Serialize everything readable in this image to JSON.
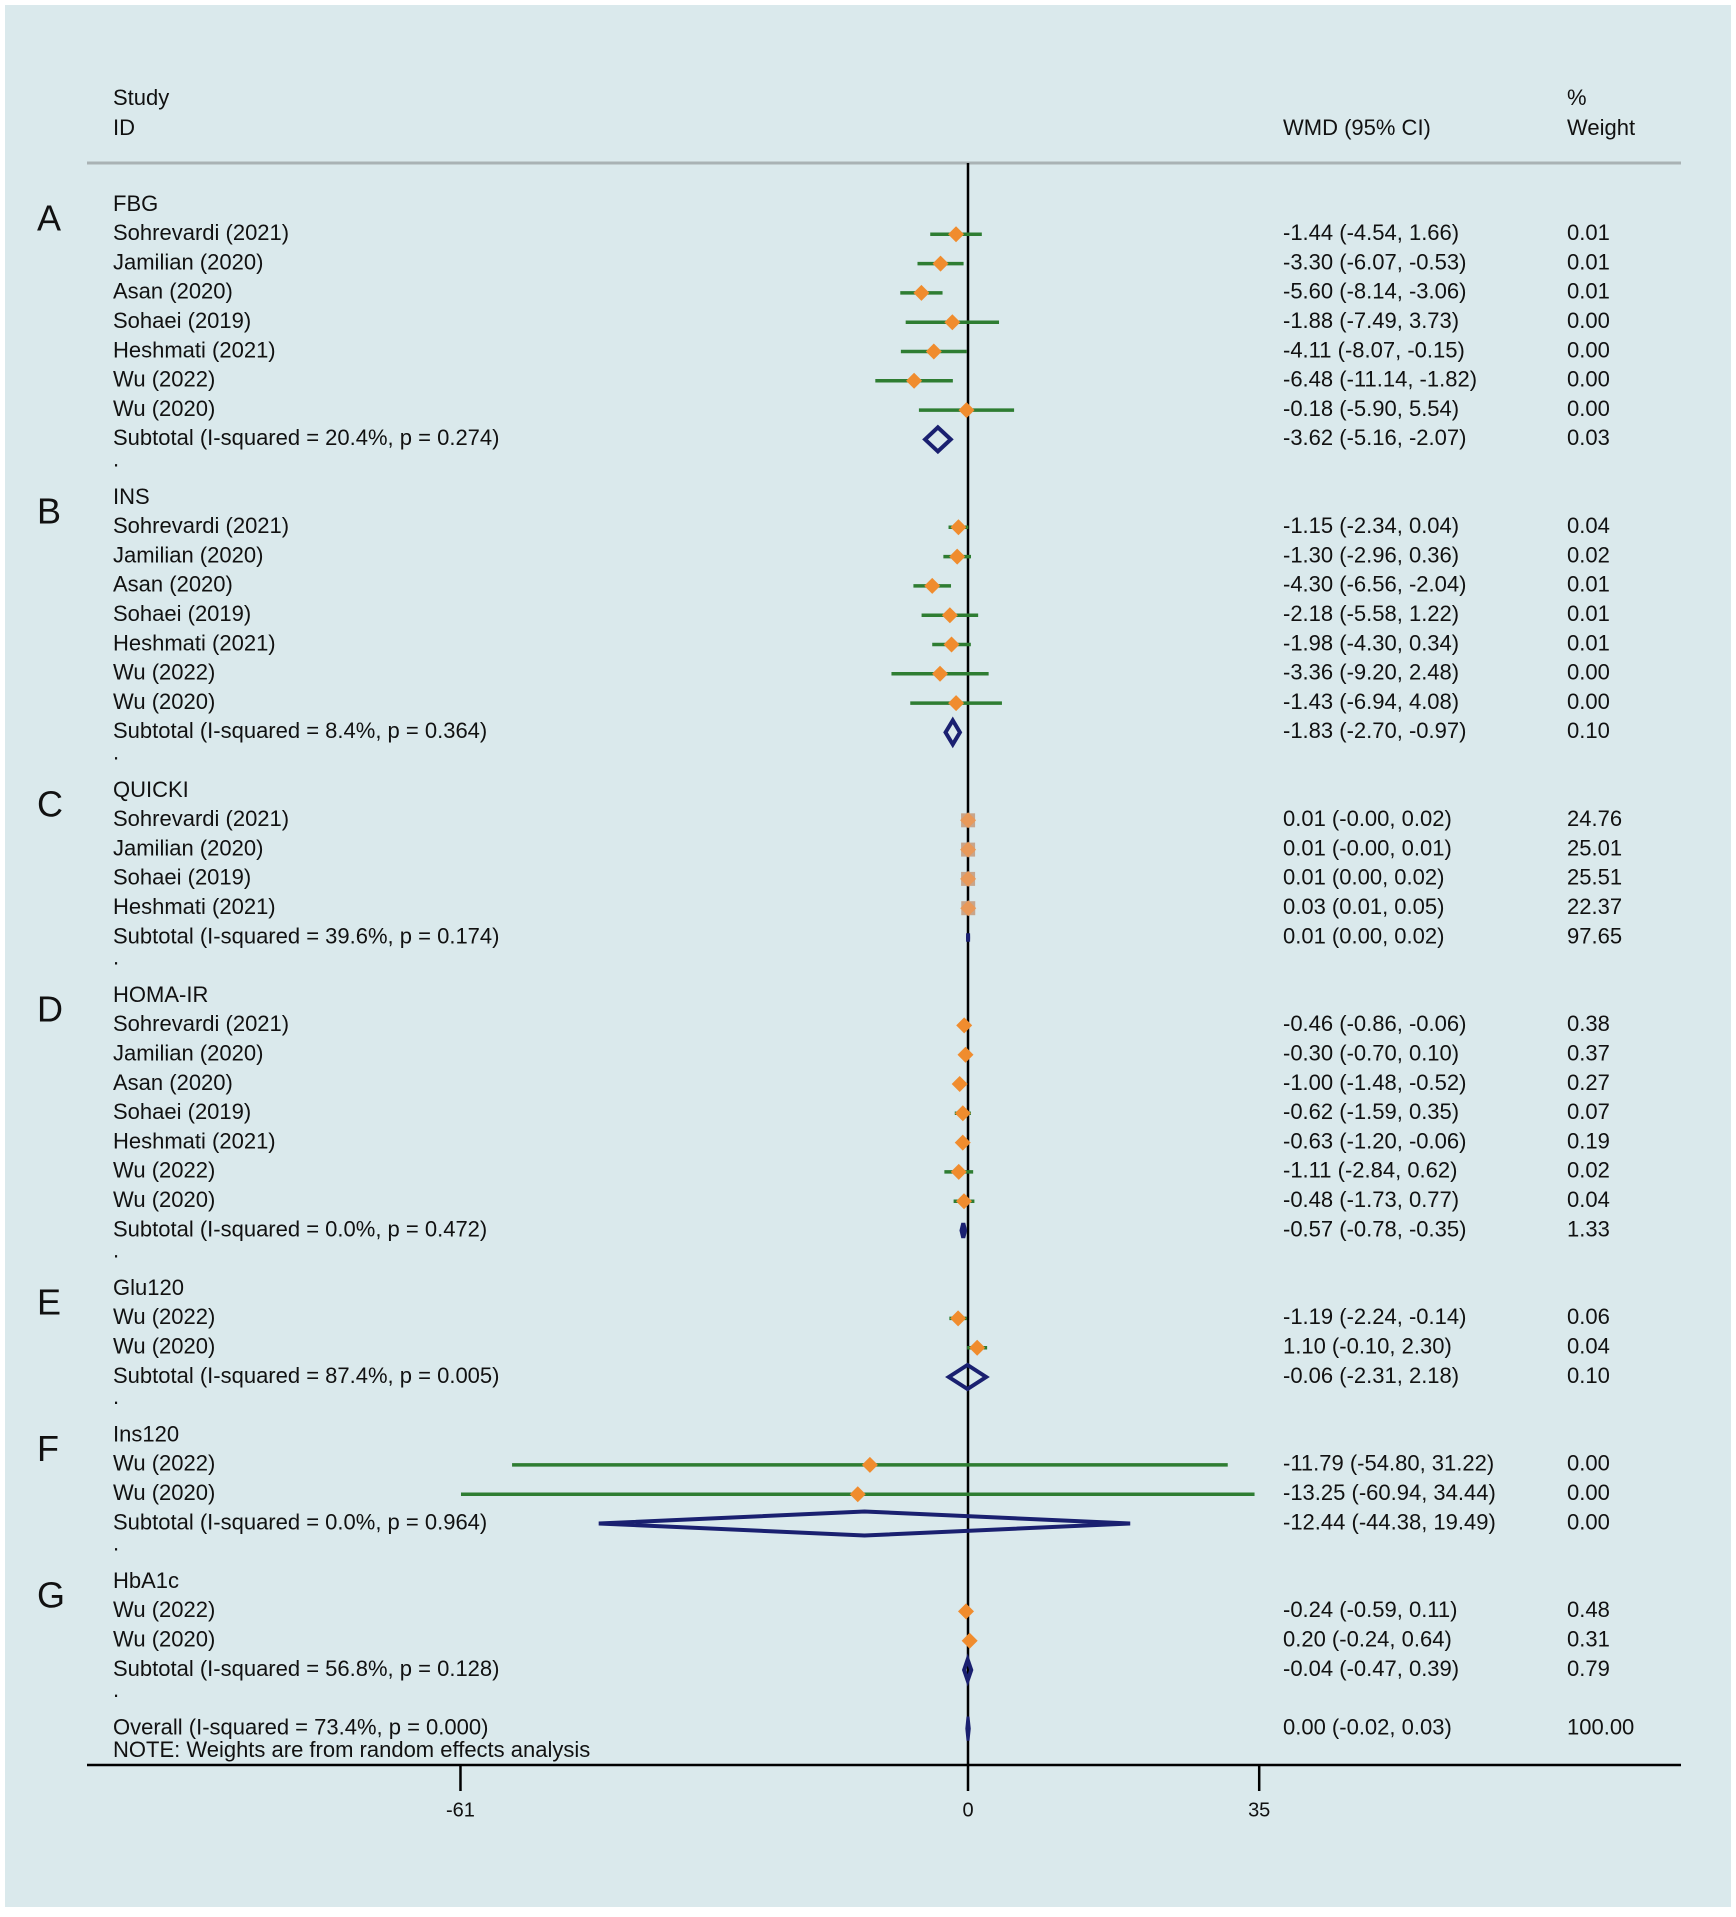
{
  "chart_data": {
    "type": "forest",
    "effect_measure": "WMD (95% CI)",
    "header": {
      "study_line1": "Study",
      "study_line2": "ID",
      "effect_label": "WMD (95% CI)",
      "weight_line1": "%",
      "weight_line2": "Weight"
    },
    "x_axis": {
      "min": -61,
      "max": 35,
      "null_value": 0,
      "ticks": [
        -61,
        0,
        35
      ],
      "tick_labels": [
        "-61",
        "0",
        "35"
      ]
    },
    "colors": {
      "background": "#dae9ec",
      "ci_line": "#2e7d32",
      "point": "#f08c2e",
      "quicki_point": "#e8995a",
      "diamond": "#1a2070",
      "axis": "#000000",
      "header_rule": "#a9b2b4"
    },
    "groups": [
      {
        "letter": "A",
        "name": "FBG",
        "studies": [
          {
            "study": "Sohrevardi (2021)",
            "wmd": -1.44,
            "lo": -4.54,
            "hi": 1.66,
            "ci_text": "-1.44 (-4.54, 1.66)",
            "weight": "0.01"
          },
          {
            "study": "Jamilian (2020)",
            "wmd": -3.3,
            "lo": -6.07,
            "hi": -0.53,
            "ci_text": "-3.30 (-6.07, -0.53)",
            "weight": "0.01"
          },
          {
            "study": "Asan (2020)",
            "wmd": -5.6,
            "lo": -8.14,
            "hi": -3.06,
            "ci_text": "-5.60 (-8.14, -3.06)",
            "weight": "0.01"
          },
          {
            "study": "Sohaei (2019)",
            "wmd": -1.88,
            "lo": -7.49,
            "hi": 3.73,
            "ci_text": "-1.88 (-7.49, 3.73)",
            "weight": "0.00"
          },
          {
            "study": "Heshmati (2021)",
            "wmd": -4.11,
            "lo": -8.07,
            "hi": -0.15,
            "ci_text": "-4.11 (-8.07, -0.15)",
            "weight": "0.00"
          },
          {
            "study": "Wu (2022)",
            "wmd": -6.48,
            "lo": -11.14,
            "hi": -1.82,
            "ci_text": "-6.48 (-11.14, -1.82)",
            "weight": "0.00"
          },
          {
            "study": "Wu (2020)",
            "wmd": -0.18,
            "lo": -5.9,
            "hi": 5.54,
            "ci_text": "-0.18 (-5.90, 5.54)",
            "weight": "0.00"
          }
        ],
        "subtotal": {
          "label": "Subtotal  (I-squared = 20.4%, p = 0.274)",
          "wmd": -3.62,
          "lo": -5.16,
          "hi": -2.07,
          "ci_text": "-3.62 (-5.16, -2.07)",
          "weight": "0.03"
        }
      },
      {
        "letter": "B",
        "name": "INS",
        "studies": [
          {
            "study": "Sohrevardi (2021)",
            "wmd": -1.15,
            "lo": -2.34,
            "hi": 0.04,
            "ci_text": "-1.15 (-2.34, 0.04)",
            "weight": "0.04"
          },
          {
            "study": "Jamilian (2020)",
            "wmd": -1.3,
            "lo": -2.96,
            "hi": 0.36,
            "ci_text": "-1.30 (-2.96, 0.36)",
            "weight": "0.02"
          },
          {
            "study": "Asan (2020)",
            "wmd": -4.3,
            "lo": -6.56,
            "hi": -2.04,
            "ci_text": "-4.30 (-6.56, -2.04)",
            "weight": "0.01"
          },
          {
            "study": "Sohaei (2019)",
            "wmd": -2.18,
            "lo": -5.58,
            "hi": 1.22,
            "ci_text": "-2.18 (-5.58, 1.22)",
            "weight": "0.01"
          },
          {
            "study": "Heshmati  (2021)",
            "wmd": -1.98,
            "lo": -4.3,
            "hi": 0.34,
            "ci_text": "-1.98 (-4.30, 0.34)",
            "weight": "0.01"
          },
          {
            "study": "Wu (2022)",
            "wmd": -3.36,
            "lo": -9.2,
            "hi": 2.48,
            "ci_text": "-3.36 (-9.20, 2.48)",
            "weight": "0.00"
          },
          {
            "study": "Wu (2020)",
            "wmd": -1.43,
            "lo": -6.94,
            "hi": 4.08,
            "ci_text": "-1.43 (-6.94, 4.08)",
            "weight": "0.00"
          }
        ],
        "subtotal": {
          "label": "Subtotal  (I-squared = 8.4%, p = 0.364)",
          "wmd": -1.83,
          "lo": -2.7,
          "hi": -0.97,
          "ci_text": "-1.83 (-2.70, -0.97)",
          "weight": "0.10"
        }
      },
      {
        "letter": "C",
        "name": "QUICKI",
        "studies": [
          {
            "study": "Sohrevardi (2021)",
            "wmd": 0.01,
            "lo": -0.0,
            "hi": 0.02,
            "ci_text": "0.01 (-0.00, 0.02)",
            "weight": "24.76"
          },
          {
            "study": "Jamilian  (2020)",
            "wmd": 0.01,
            "lo": -0.0,
            "hi": 0.01,
            "ci_text": "0.01 (-0.00, 0.01)",
            "weight": "25.01"
          },
          {
            "study": "Sohaei (2019)",
            "wmd": 0.01,
            "lo": 0.0,
            "hi": 0.02,
            "ci_text": "0.01 (0.00, 0.02)",
            "weight": "25.51"
          },
          {
            "study": "Heshmati (2021)",
            "wmd": 0.03,
            "lo": 0.01,
            "hi": 0.05,
            "ci_text": "0.03 (0.01, 0.05)",
            "weight": "22.37"
          }
        ],
        "subtotal": {
          "label": "Subtotal  (I-squared = 39.6%, p = 0.174)",
          "wmd": 0.01,
          "lo": 0.0,
          "hi": 0.02,
          "ci_text": "0.01 (0.00, 0.02)",
          "weight": "97.65"
        }
      },
      {
        "letter": "D",
        "name": "HOMA-IR",
        "studies": [
          {
            "study": "Sohrevardi (2021)",
            "wmd": -0.46,
            "lo": -0.86,
            "hi": -0.06,
            "ci_text": "-0.46 (-0.86, -0.06)",
            "weight": "0.38"
          },
          {
            "study": "Jamilian (2020)",
            "wmd": -0.3,
            "lo": -0.7,
            "hi": 0.1,
            "ci_text": "-0.30 (-0.70, 0.10)",
            "weight": "0.37"
          },
          {
            "study": "Asan (2020)",
            "wmd": -1.0,
            "lo": -1.48,
            "hi": -0.52,
            "ci_text": "-1.00 (-1.48, -0.52)",
            "weight": "0.27"
          },
          {
            "study": "Sohaei (2019)",
            "wmd": -0.62,
            "lo": -1.59,
            "hi": 0.35,
            "ci_text": "-0.62 (-1.59, 0.35)",
            "weight": "0.07"
          },
          {
            "study": "Heshmati (2021)",
            "wmd": -0.63,
            "lo": -1.2,
            "hi": -0.06,
            "ci_text": "-0.63 (-1.20, -0.06)",
            "weight": "0.19"
          },
          {
            "study": "Wu (2022)",
            "wmd": -1.11,
            "lo": -2.84,
            "hi": 0.62,
            "ci_text": "-1.11 (-2.84, 0.62)",
            "weight": "0.02"
          },
          {
            "study": "Wu (2020)",
            "wmd": -0.48,
            "lo": -1.73,
            "hi": 0.77,
            "ci_text": "-0.48 (-1.73, 0.77)",
            "weight": "0.04"
          }
        ],
        "subtotal": {
          "label": "Subtotal  (I-squared = 0.0%, p = 0.472)",
          "wmd": -0.57,
          "lo": -0.78,
          "hi": -0.35,
          "ci_text": "-0.57 (-0.78, -0.35)",
          "weight": "1.33"
        }
      },
      {
        "letter": "E",
        "name": "Glu120",
        "studies": [
          {
            "study": "Wu (2022)",
            "wmd": -1.19,
            "lo": -2.24,
            "hi": -0.14,
            "ci_text": "-1.19 (-2.24, -0.14)",
            "weight": "0.06"
          },
          {
            "study": "Wu (2020)",
            "wmd": 1.1,
            "lo": -0.1,
            "hi": 2.3,
            "ci_text": "1.10 (-0.10, 2.30)",
            "weight": "0.04"
          }
        ],
        "subtotal": {
          "label": "Subtotal  (I-squared = 87.4%, p = 0.005)",
          "wmd": -0.06,
          "lo": -2.31,
          "hi": 2.18,
          "ci_text": "-0.06 (-2.31, 2.18)",
          "weight": "0.10"
        }
      },
      {
        "letter": "F",
        "name": "Ins120",
        "studies": [
          {
            "study": "Wu (2022)",
            "wmd": -11.79,
            "lo": -54.8,
            "hi": 31.22,
            "ci_text": "-11.79 (-54.80, 31.22)",
            "weight": "0.00"
          },
          {
            "study": "Wu (2020)",
            "wmd": -13.25,
            "lo": -60.94,
            "hi": 34.44,
            "ci_text": "-13.25 (-60.94, 34.44)",
            "weight": "0.00"
          }
        ],
        "subtotal": {
          "label": "Subtotal  (I-squared = 0.0%, p = 0.964)",
          "wmd": -12.44,
          "lo": -44.38,
          "hi": 19.49,
          "ci_text": "-12.44 (-44.38, 19.49)",
          "weight": "0.00"
        }
      },
      {
        "letter": "G",
        "name": "HbA1c",
        "studies": [
          {
            "study": "Wu (2022)",
            "wmd": -0.24,
            "lo": -0.59,
            "hi": 0.11,
            "ci_text": "-0.24 (-0.59, 0.11)",
            "weight": "0.48"
          },
          {
            "study": "Wu (2020)",
            "wmd": 0.2,
            "lo": -0.24,
            "hi": 0.64,
            "ci_text": "0.20 (-0.24, 0.64)",
            "weight": "0.31"
          }
        ],
        "subtotal": {
          "label": "Subtotal  (I-squared = 56.8%, p = 0.128)",
          "wmd": -0.04,
          "lo": -0.47,
          "hi": 0.39,
          "ci_text": "-0.04 (-0.47, 0.39)",
          "weight": "0.79"
        }
      }
    ],
    "overall": {
      "label": "Overall  (I-squared = 73.4%, p = 0.000)",
      "wmd": 0.0,
      "lo": -0.02,
      "hi": 0.03,
      "ci_text": "0.00 (-0.02, 0.03)",
      "weight": "100.00"
    },
    "note": "NOTE: Weights are from random effects analysis"
  }
}
